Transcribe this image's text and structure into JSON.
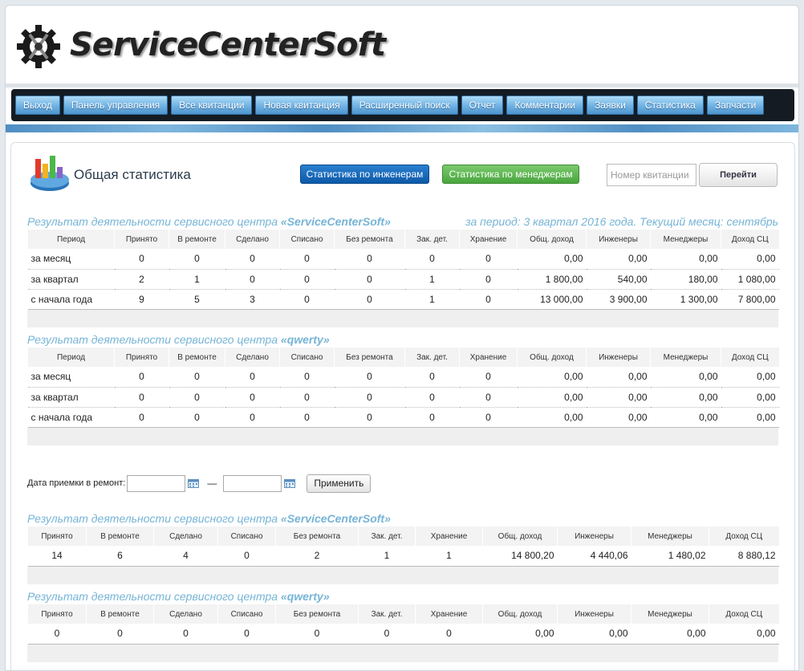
{
  "header": {
    "logo_text": "ServiceCenterSoft"
  },
  "nav": {
    "items": [
      "Выход",
      "Панель управления",
      "Все квитанции",
      "Новая квитанция",
      "Расширенный поиск",
      "Отчет",
      "Комментарии",
      "Заявки",
      "Статистика",
      "Запчасти"
    ]
  },
  "toolbar": {
    "title": "Общая статистика",
    "engineers_btn": "Статистика по инженерам",
    "managers_btn": "Статистика по менеджерам",
    "receipt_placeholder": "Номер квитанции",
    "go_btn": "Перейти"
  },
  "period_columns": [
    "Период",
    "Принято",
    "В ремонте",
    "Сделано",
    "Списано",
    "Без ремонта",
    "Зак. дет.",
    "Хранение",
    "Общ. доход",
    "Инженеры",
    "Менеджеры",
    "Доход СЦ"
  ],
  "period_stats": [
    {
      "title_prefix": "Результат деятельности сервисного центра ",
      "center": "«ServiceCenterSoft»",
      "period_note": "за период: 3 квартал 2016 года. Текущий месяц: сентябрь",
      "rows": [
        [
          "за месяц",
          "0",
          "0",
          "0",
          "0",
          "0",
          "0",
          "0",
          "0,00",
          "0,00",
          "0,00",
          "0,00"
        ],
        [
          "за квартал",
          "2",
          "1",
          "0",
          "0",
          "0",
          "1",
          "0",
          "1 800,00",
          "540,00",
          "180,00",
          "1 080,00"
        ],
        [
          "с начала года",
          "9",
          "5",
          "3",
          "0",
          "0",
          "1",
          "0",
          "13 000,00",
          "3 900,00",
          "1 300,00",
          "7 800,00"
        ]
      ]
    },
    {
      "title_prefix": "Результат деятельности сервисного центра ",
      "center": "«qwerty»",
      "period_note": "",
      "rows": [
        [
          "за месяц",
          "0",
          "0",
          "0",
          "0",
          "0",
          "0",
          "0",
          "0,00",
          "0,00",
          "0,00",
          "0,00"
        ],
        [
          "за квартал",
          "0",
          "0",
          "0",
          "0",
          "0",
          "0",
          "0",
          "0,00",
          "0,00",
          "0,00",
          "0,00"
        ],
        [
          "с начала года",
          "0",
          "0",
          "0",
          "0",
          "0",
          "0",
          "0",
          "0,00",
          "0,00",
          "0,00",
          "0,00"
        ]
      ]
    }
  ],
  "date_filter": {
    "label": "Дата приемки в ремонт:",
    "from": "",
    "to": "",
    "separator": "—",
    "apply_btn": "Применить"
  },
  "range_columns": [
    "Принято",
    "В ремонте",
    "Сделано",
    "Списано",
    "Без ремонта",
    "Зак. дет.",
    "Хранение",
    "Общ. доход",
    "Инженеры",
    "Менеджеры",
    "Доход СЦ"
  ],
  "range_stats": [
    {
      "title_prefix": "Результат деятельности сервисного центра ",
      "center": "«ServiceCenterSoft»",
      "row": [
        "14",
        "6",
        "4",
        "0",
        "2",
        "1",
        "1",
        "14 800,20",
        "4 440,06",
        "1 480,02",
        "8 880,12"
      ]
    },
    {
      "title_prefix": "Результат деятельности сервисного центра ",
      "center": "«qwerty»",
      "row": [
        "0",
        "0",
        "0",
        "0",
        "0",
        "0",
        "0",
        "0,00",
        "0,00",
        "0,00",
        "0,00"
      ]
    }
  ]
}
